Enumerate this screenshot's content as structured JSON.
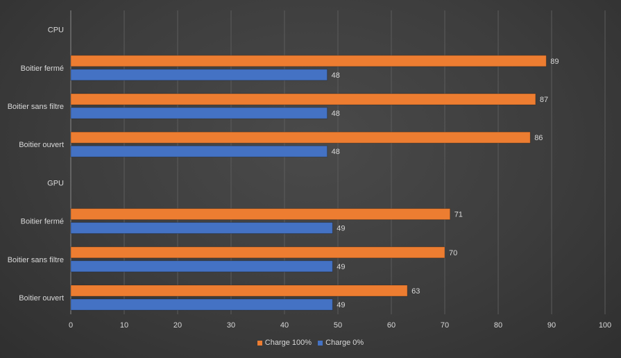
{
  "chart_data": {
    "type": "bar",
    "orientation": "horizontal",
    "title": "",
    "xlabel": "",
    "ylabel": "",
    "xlim": [
      0,
      100
    ],
    "x_ticks": [
      "0",
      "10",
      "20",
      "30",
      "40",
      "50",
      "60",
      "70",
      "80",
      "90",
      "100"
    ],
    "grid": true,
    "legend_position": "bottom",
    "groups": [
      {
        "label": "CPU",
        "categories": [
          "Boitier fermé",
          "Boitier sans filtre",
          "Boitier ouvert"
        ],
        "series": [
          {
            "name": "Charge 100%",
            "values": [
              89,
              87,
              86
            ]
          },
          {
            "name": "Charge 0%",
            "values": [
              48,
              48,
              48
            ]
          }
        ]
      },
      {
        "label": "GPU",
        "categories": [
          "Boitier fermé",
          "Boitier sans filtre",
          "Boitier ouvert"
        ],
        "series": [
          {
            "name": "Charge 100%",
            "values": [
              71,
              70,
              63
            ]
          },
          {
            "name": "Charge 0%",
            "values": [
              49,
              49,
              49
            ]
          }
        ]
      }
    ],
    "series_colors": {
      "Charge 100%": "#ed7d31",
      "Charge 0%": "#4472c4"
    },
    "legend": [
      "Charge 100%",
      "Charge 0%"
    ]
  }
}
